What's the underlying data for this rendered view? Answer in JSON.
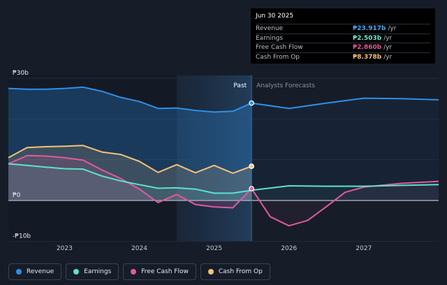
{
  "tooltip": {
    "date": "Jun 30 2025",
    "rows": [
      {
        "name": "Revenue",
        "value": "₱23.917b",
        "unit": "/yr",
        "color": "#4aa8f0"
      },
      {
        "name": "Earnings",
        "value": "₱2.503b",
        "unit": "/yr",
        "color": "#6ee8d6"
      },
      {
        "name": "Free Cash Flow",
        "value": "₱2.860b",
        "unit": "/yr",
        "color": "#e05a9d"
      },
      {
        "name": "Cash From Op",
        "value": "₱8.378b",
        "unit": "/yr",
        "color": "#f5c07a"
      }
    ]
  },
  "legend": [
    {
      "label": "Revenue",
      "color": "#2f8fe6"
    },
    {
      "label": "Earnings",
      "color": "#5fe0d2"
    },
    {
      "label": "Free Cash Flow",
      "color": "#e05a9d"
    },
    {
      "label": "Cash From Op",
      "color": "#f5c07a"
    }
  ],
  "chart_data": {
    "type": "line",
    "title": "",
    "xlabel": "",
    "ylabel": "",
    "ylim": [
      -10,
      30
    ],
    "xlim": [
      2022.25,
      2028.0
    ],
    "y_tick_labels": [
      {
        "value": 30,
        "label": "₱30b"
      },
      {
        "value": 0,
        "label": "₱0"
      },
      {
        "value": -10,
        "label": "-₱10b"
      }
    ],
    "x_tick_labels": [
      {
        "value": 2023.0,
        "label": "2023"
      },
      {
        "value": 2024.0,
        "label": "2024"
      },
      {
        "value": 2025.0,
        "label": "2025"
      },
      {
        "value": 2026.0,
        "label": "2026"
      },
      {
        "value": 2027.0,
        "label": "2027"
      }
    ],
    "past_label": "Past",
    "forecast_label": "Analysts Forecasts",
    "past_boundary": 2025.5,
    "highlight_start": 2024.5,
    "series": [
      {
        "name": "Revenue",
        "color": "#2f8fe6",
        "past": true,
        "x": [
          2022.25,
          2022.5,
          2022.75,
          2023.0,
          2023.25,
          2023.5,
          2023.75,
          2024.0,
          2024.25,
          2024.5,
          2024.75,
          2025.0,
          2025.25,
          2025.5
        ],
        "values": [
          27.5,
          27.3,
          27.3,
          27.5,
          27.8,
          26.8,
          25.3,
          24.3,
          22.6,
          22.7,
          22.1,
          21.7,
          21.9,
          23.9
        ]
      },
      {
        "name": "Revenue forecast",
        "color": "#2f8fe6",
        "past": false,
        "x": [
          2025.5,
          2026.0,
          2026.5,
          2027.0,
          2027.5,
          2028.0
        ],
        "values": [
          23.9,
          22.6,
          23.9,
          25.1,
          25.0,
          24.7
        ]
      },
      {
        "name": "Cash From Op",
        "color": "#f5c07a",
        "past": true,
        "x": [
          2022.25,
          2022.5,
          2022.75,
          2023.0,
          2023.25,
          2023.5,
          2023.75,
          2024.0,
          2024.25,
          2024.5,
          2024.75,
          2025.0,
          2025.25,
          2025.5
        ],
        "values": [
          10.5,
          13.0,
          13.2,
          13.3,
          13.5,
          11.9,
          11.3,
          9.6,
          6.9,
          8.8,
          6.8,
          8.6,
          6.7,
          8.4
        ]
      },
      {
        "name": "Free Cash Flow",
        "color": "#e05a9d",
        "past": true,
        "x": [
          2022.25,
          2022.5,
          2022.75,
          2023.0,
          2023.25,
          2023.5,
          2023.75,
          2024.0,
          2024.25,
          2024.5,
          2024.75,
          2025.0,
          2025.25,
          2025.5
        ],
        "values": [
          9.0,
          11.0,
          10.9,
          10.5,
          9.9,
          7.5,
          5.4,
          2.8,
          -0.5,
          1.5,
          -1.0,
          -1.6,
          -1.8,
          2.9
        ]
      },
      {
        "name": "Free Cash Flow forecast",
        "color": "#e05a9d",
        "past": false,
        "x": [
          2025.5,
          2025.75,
          2026.0,
          2026.25,
          2026.5,
          2026.75,
          2027.0,
          2027.5,
          2028.0
        ],
        "values": [
          2.9,
          -4.0,
          -6.2,
          -4.9,
          -1.5,
          2.0,
          3.3,
          4.2,
          4.7
        ]
      },
      {
        "name": "Earnings",
        "color": "#5fe0d2",
        "past": true,
        "x": [
          2022.25,
          2022.5,
          2022.75,
          2023.0,
          2023.25,
          2023.5,
          2023.75,
          2024.0,
          2024.25,
          2024.5,
          2024.75,
          2025.0,
          2025.25,
          2025.5
        ],
        "values": [
          9.0,
          8.6,
          8.2,
          7.8,
          7.7,
          6.0,
          4.8,
          3.9,
          3.0,
          3.1,
          2.8,
          1.8,
          1.8,
          2.5
        ]
      },
      {
        "name": "Earnings forecast",
        "color": "#5fe0d2",
        "past": false,
        "x": [
          2025.5,
          2026.0,
          2026.5,
          2027.0,
          2027.5,
          2028.0
        ],
        "values": [
          2.5,
          3.6,
          3.5,
          3.5,
          3.7,
          3.9
        ]
      }
    ],
    "highlight_markers": [
      {
        "series": "Revenue",
        "x": 2025.5,
        "value": 23.9,
        "color": "#2f8fe6"
      },
      {
        "series": "Cash From Op",
        "x": 2025.5,
        "value": 8.4,
        "color": "#f5c07a"
      },
      {
        "series": "Free Cash Flow",
        "x": 2025.5,
        "value": 2.9,
        "color": "#e05a9d"
      }
    ]
  }
}
